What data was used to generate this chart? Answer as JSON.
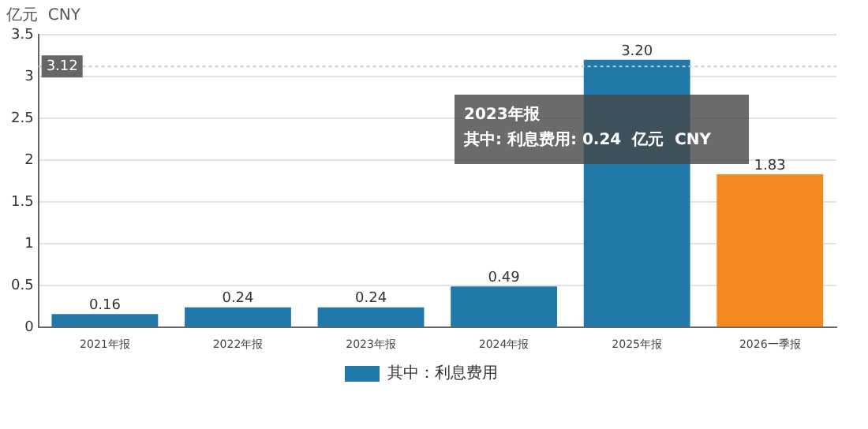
{
  "chart_data": {
    "type": "bar",
    "ylabel": "亿元  CNY",
    "categories": [
      "2021年报",
      "2022年报",
      "2023年报",
      "2024年报",
      "2025年报",
      "2026一季报"
    ],
    "series": [
      {
        "name": "其中：利息费用",
        "color": "#2179a9",
        "colors": [
          "#2179a9",
          "#2179a9",
          "#2179a9",
          "#2179a9",
          "#2179a9",
          "#f5891f"
        ],
        "values": [
          0.16,
          0.24,
          0.24,
          0.49,
          3.2,
          1.83
        ]
      }
    ],
    "value_labels": [
      "0.16",
      "0.24",
      "0.24",
      "0.49",
      "3.20",
      "1.83"
    ],
    "ylim": [
      0,
      3.5
    ],
    "yticks": [
      0,
      0.5,
      1,
      1.5,
      2,
      2.5,
      3,
      3.5
    ],
    "grid": "y",
    "legend": "bottom",
    "ref_lines": [
      {
        "axis": "y",
        "value": 3.12,
        "label": "3.12",
        "color": "#cccccc",
        "line_style": "dotted"
      }
    ],
    "annotations": [
      "2023年报",
      "其中: 利息费用: 0.24  亿元  CNY"
    ]
  }
}
